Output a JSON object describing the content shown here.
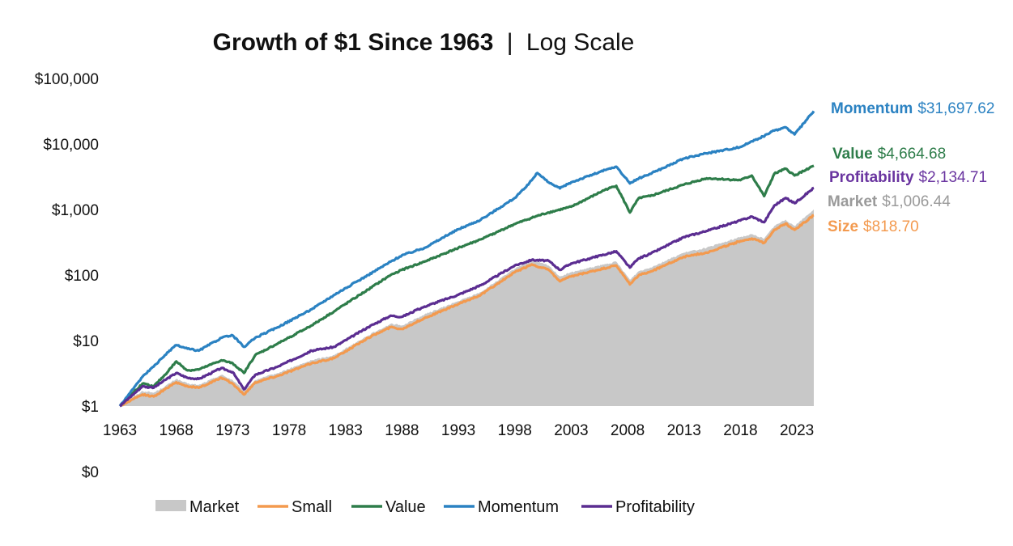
{
  "chart_data": {
    "type": "line",
    "title": "Growth of $1 Since 1963",
    "subtitle": "Log Scale",
    "title_separator": "|",
    "y_scale": "log",
    "ylim": [
      1,
      100000
    ],
    "xlim": [
      1963,
      2024.5
    ],
    "y_ticks": [
      {
        "value": 1,
        "label": "$1"
      },
      {
        "value": 10,
        "label": "$10"
      },
      {
        "value": 100,
        "label": "$100"
      },
      {
        "value": 1000,
        "label": "$1,000"
      },
      {
        "value": 10000,
        "label": "$10,000"
      },
      {
        "value": 100000,
        "label": "$100,000"
      }
    ],
    "extra_y_label": "$0",
    "x_ticks": [
      1963,
      1968,
      1973,
      1978,
      1983,
      1988,
      1993,
      1998,
      2003,
      2008,
      2013,
      2018,
      2023
    ],
    "grid": false,
    "legend_placement": "bottom",
    "series": [
      {
        "name": "Market",
        "style": "area",
        "color": "#c8c8c8",
        "end_name": "Market",
        "end_value": "$1,006.44",
        "label_color": "#9a9a9a",
        "x": [
          1963,
          1965,
          1966,
          1967,
          1968,
          1969,
          1970,
          1972,
          1973,
          1974,
          1975,
          1977,
          1980,
          1982,
          1985,
          1987,
          1988,
          1990,
          1993,
          1995,
          1998,
          1999.5,
          2001,
          2002,
          2003,
          2007,
          2008.2,
          2009,
          2010,
          2013,
          2015,
          2018,
          2019,
          2020.1,
          2021,
          2022,
          2022.8,
          2024.5
        ],
        "y": [
          1,
          1.7,
          1.6,
          2.0,
          2.6,
          2.2,
          2.1,
          3.0,
          2.5,
          1.7,
          2.5,
          3.2,
          5.0,
          6.0,
          12,
          18,
          17,
          25,
          40,
          55,
          125,
          170,
          140,
          95,
          110,
          160,
          85,
          115,
          130,
          220,
          260,
          380,
          420,
          360,
          560,
          700,
          560,
          1006.44
        ]
      },
      {
        "name": "Small",
        "style": "line",
        "color": "#f39a4f",
        "end_name": "Size",
        "end_value": "$818.70",
        "label_color": "#f39a4f",
        "x": [
          1963,
          1965,
          1966,
          1967,
          1968,
          1969,
          1970,
          1972,
          1973,
          1974,
          1975,
          1977,
          1980,
          1982,
          1985,
          1987,
          1988,
          1990,
          1993,
          1995,
          1998,
          1999.5,
          2001,
          2002,
          2003,
          2007,
          2008.2,
          2009,
          2010,
          2013,
          2015,
          2018,
          2019,
          2020.1,
          2021,
          2022,
          2022.8,
          2024.5
        ],
        "y": [
          1,
          1.5,
          1.4,
          1.8,
          2.3,
          2.0,
          1.9,
          2.7,
          2.2,
          1.5,
          2.3,
          2.9,
          4.5,
          5.4,
          11,
          16,
          15,
          22,
          36,
          50,
          110,
          145,
          120,
          80,
          95,
          140,
          72,
          100,
          112,
          190,
          220,
          330,
          360,
          310,
          490,
          610,
          490,
          818.7
        ]
      },
      {
        "name": "Value",
        "style": "line",
        "color": "#2e7d4a",
        "end_name": "Value",
        "end_value": "$4,664.68",
        "label_color": "#2e7d4a",
        "x": [
          1963,
          1965,
          1966,
          1967,
          1968,
          1969,
          1970,
          1972,
          1973,
          1974,
          1975,
          1977,
          1980,
          1982,
          1985,
          1987,
          1988,
          1990,
          1993,
          1995,
          1998,
          2000,
          2001,
          2003,
          2006,
          2007,
          2008.2,
          2009,
          2010,
          2013,
          2015,
          2018,
          2019,
          2020.1,
          2021,
          2022,
          2022.8,
          2024.5
        ],
        "y": [
          1,
          2.2,
          2.0,
          3.0,
          4.8,
          3.5,
          3.6,
          5.0,
          4.5,
          3.2,
          6.0,
          9.0,
          17,
          28,
          60,
          100,
          120,
          160,
          260,
          350,
          600,
          800,
          900,
          1100,
          2000,
          2300,
          900,
          1500,
          1600,
          2400,
          3000,
          2800,
          3300,
          1600,
          3500,
          4200,
          3300,
          4664.68
        ]
      },
      {
        "name": "Momentum",
        "style": "line",
        "color": "#2b82c2",
        "end_name": "Momentum",
        "end_value": "$31,697.62",
        "label_color": "#2b82c2",
        "x": [
          1963,
          1965,
          1966,
          1967,
          1968,
          1969,
          1970,
          1972,
          1973,
          1974,
          1975,
          1977,
          1980,
          1982,
          1985,
          1987,
          1988,
          1990,
          1993,
          1995,
          1998,
          1999,
          2000,
          2001,
          2002,
          2003,
          2006,
          2007,
          2008.2,
          2009,
          2010,
          2013,
          2015,
          2018,
          2019,
          2020,
          2021,
          2022,
          2022.8,
          2024.5
        ],
        "y": [
          1,
          2.8,
          4.0,
          6.0,
          8.5,
          7.5,
          7.0,
          11,
          12,
          8.0,
          11,
          16,
          30,
          50,
          100,
          160,
          200,
          260,
          500,
          700,
          1500,
          2200,
          3600,
          2600,
          2100,
          2600,
          4000,
          4500,
          2500,
          3000,
          3500,
          6000,
          7200,
          9000,
          11000,
          13000,
          16000,
          18000,
          14000,
          31697.62
        ]
      },
      {
        "name": "Profitability",
        "style": "line",
        "color": "#5b2d91",
        "end_name": "Profitability",
        "end_value": "$2,134.71",
        "label_color": "#6a35a0",
        "x": [
          1963,
          1965,
          1966,
          1967,
          1968,
          1969,
          1970,
          1972,
          1973,
          1974,
          1975,
          1977,
          1980,
          1982,
          1985,
          1987,
          1988,
          1990,
          1993,
          1995,
          1998,
          1999.5,
          2001,
          2002,
          2003,
          2007,
          2008.2,
          2009,
          2010,
          2013,
          2015,
          2018,
          2019,
          2020.1,
          2021,
          2022,
          2022.8,
          2024.5
        ],
        "y": [
          1,
          2.0,
          1.9,
          2.5,
          3.2,
          2.7,
          2.6,
          3.8,
          3.3,
          1.8,
          3.0,
          4.0,
          7.0,
          8.0,
          16,
          24,
          23,
          33,
          50,
          70,
          140,
          170,
          165,
          120,
          150,
          230,
          130,
          180,
          210,
          380,
          470,
          680,
          780,
          640,
          1150,
          1500,
          1250,
          2134.71
        ]
      }
    ]
  }
}
